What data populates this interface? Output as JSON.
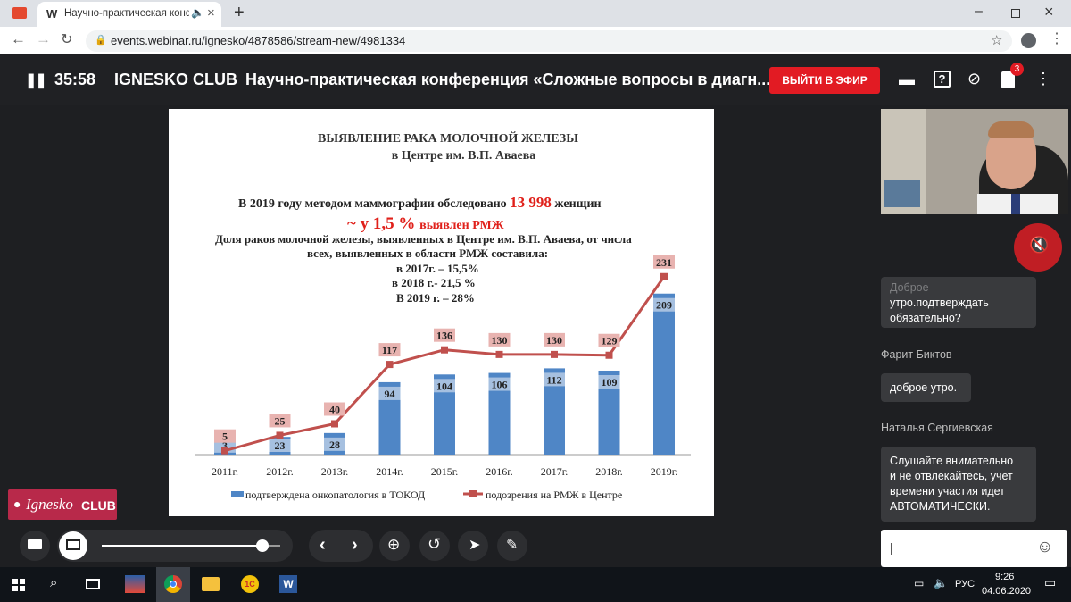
{
  "browser": {
    "tab_title": "Научно-практическая конф",
    "tab_favicon_letter": "W",
    "url": "events.webinar.ru/ignesko/4878586/stream-new/4981334"
  },
  "header": {
    "timer": "35:58",
    "org": "IGNESKO CLUB",
    "title": "Научно-практическая конференция «Сложные вопросы в диагн...",
    "onair_label": "ВЫЙТИ В ЭФИР",
    "files_badge": "3"
  },
  "slide": {
    "title1": "ВЫЯВЛЕНИЕ РАКА МОЛОЧНОЙ ЖЕЛЕЗЫ",
    "title2": "в Центре им. В.П. Аваева",
    "line1_a": "В 2019 году методом маммографии обследовано ",
    "line1_b": "13 998",
    "line1_c": " женщин",
    "line2_a": "~ у 1,5 % ",
    "line2_b": "выявлен РМЖ",
    "para1": "Доля раков молочной железы, выявленных в Центре им. В.П. Аваева, от числа",
    "para2": "всех, выявленных в области  РМЖ составила:",
    "stat1": "в 2017г. – 15,5%",
    "stat2": "в 2018 г.- 21,5 %",
    "stat3": "В 2019 г. – 28%"
  },
  "chart_data": {
    "type": "bar",
    "categories": [
      "2011г.",
      "2012г.",
      "2013г.",
      "2014г.",
      "2015г.",
      "2016г.",
      "2017г.",
      "2018г.",
      "2019г."
    ],
    "series": [
      {
        "name": "подтверждена онкопатология в ТОКОД",
        "type": "bar",
        "values": [
          3,
          23,
          28,
          94,
          104,
          106,
          112,
          109,
          209
        ],
        "color": "#4f86c6"
      },
      {
        "name": "подозрения на РМЖ в Центре",
        "type": "line",
        "values": [
          5,
          25,
          40,
          117,
          136,
          130,
          130,
          129,
          231
        ],
        "color": "#c0504d"
      }
    ],
    "ylim": [
      0,
      240
    ],
    "legend": "bottom"
  },
  "logo": {
    "text_a": "Ignesko",
    "text_b": "CLUB"
  },
  "chat": {
    "messages": [
      {
        "author": "",
        "text_lines": [
          "Доброе",
          "утро.подтверждать",
          "обязательно?"
        ]
      },
      {
        "author": "Фарит Биктов",
        "text_lines": [
          "доброе утро."
        ]
      },
      {
        "author": "Наталья Сергиевская",
        "text_lines": [
          "Слушайте внимательно",
          "и не отвлекайтесь, учет",
          "времени участия идет",
          "АВТОМАТИЧЕСКИ."
        ]
      }
    ],
    "input_value": "|"
  },
  "player": {
    "progress": 0.9
  },
  "taskbar": {
    "lang": "РУС",
    "time": "9:26",
    "date": "04.06.2020"
  },
  "colors": {
    "accent_red": "#e21b23",
    "bar_blue": "#4f86c6",
    "line_red": "#c0504d"
  }
}
